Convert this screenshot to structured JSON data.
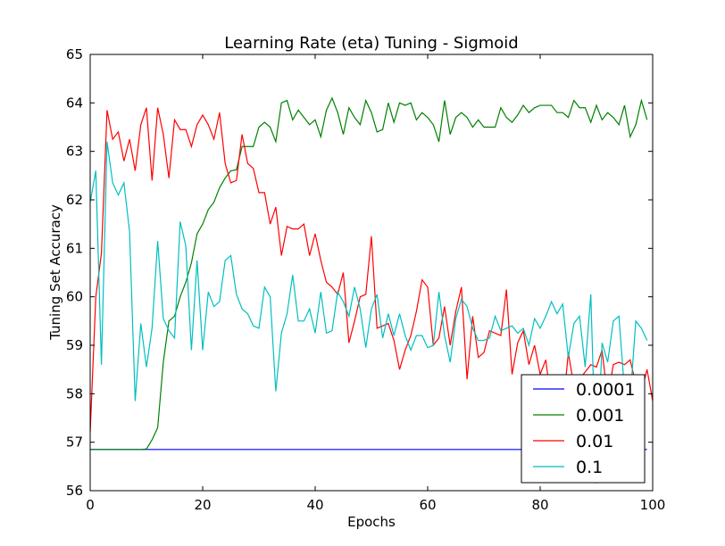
{
  "chart_data": {
    "type": "line",
    "title": "Learning Rate (eta) Tuning - Sigmoid",
    "xlabel": "Epochs",
    "ylabel": "Tuning Set Accuracy",
    "xlim": [
      0,
      100
    ],
    "ylim": [
      56,
      65
    ],
    "x_ticks": [
      "0",
      "20",
      "40",
      "60",
      "80",
      "100"
    ],
    "y_ticks": [
      "56",
      "57",
      "58",
      "59",
      "60",
      "61",
      "62",
      "63",
      "64",
      "65"
    ],
    "grid": false,
    "legend_position": "lower-right",
    "series": [
      {
        "name": "0.0001",
        "color": "#0000ff",
        "values": [
          56.85,
          56.85,
          56.85,
          56.85,
          56.85,
          56.85,
          56.85,
          56.85,
          56.85,
          56.85,
          56.85,
          56.85,
          56.85,
          56.85,
          56.85,
          56.85,
          56.85,
          56.85,
          56.85,
          56.85,
          56.85,
          56.85,
          56.85,
          56.85,
          56.85,
          56.85,
          56.85,
          56.85,
          56.85,
          56.85,
          56.85,
          56.85,
          56.85,
          56.85,
          56.85,
          56.85,
          56.85,
          56.85,
          56.85,
          56.85,
          56.85,
          56.85,
          56.85,
          56.85,
          56.85,
          56.85,
          56.85,
          56.85,
          56.85,
          56.85,
          56.85,
          56.85,
          56.85,
          56.85,
          56.85,
          56.85,
          56.85,
          56.85,
          56.85,
          56.85,
          56.85,
          56.85,
          56.85,
          56.85,
          56.85,
          56.85,
          56.85,
          56.85,
          56.85,
          56.85,
          56.85,
          56.85,
          56.85,
          56.85,
          56.85,
          56.85,
          56.85,
          56.85,
          56.85,
          56.85,
          56.85,
          56.85,
          56.85,
          56.85,
          56.85,
          56.85,
          56.85,
          56.85,
          56.85,
          56.85,
          56.85,
          56.85,
          56.85,
          56.85,
          56.85,
          56.85,
          56.85,
          56.85,
          56.85,
          56.85
        ]
      },
      {
        "name": "0.001",
        "color": "#008000",
        "values": [
          56.85,
          56.85,
          56.85,
          56.85,
          56.85,
          56.85,
          56.85,
          56.85,
          56.85,
          56.85,
          56.86,
          57.05,
          57.3,
          58.65,
          59.5,
          59.6,
          60.0,
          60.3,
          60.7,
          61.3,
          61.5,
          61.8,
          61.95,
          62.25,
          62.45,
          62.6,
          62.62,
          63.1,
          63.1,
          63.1,
          63.5,
          63.6,
          63.5,
          63.2,
          64.0,
          64.05,
          63.65,
          63.85,
          63.7,
          63.55,
          63.65,
          63.3,
          63.85,
          64.1,
          63.8,
          63.35,
          63.9,
          63.7,
          63.55,
          64.05,
          63.8,
          63.4,
          63.45,
          64.0,
          63.6,
          64.0,
          63.95,
          64.0,
          63.65,
          63.8,
          63.7,
          63.55,
          63.2,
          64.05,
          63.35,
          63.7,
          63.8,
          63.7,
          63.5,
          63.65,
          63.5,
          63.5,
          63.5,
          63.9,
          63.7,
          63.6,
          63.75,
          63.95,
          63.8,
          63.9,
          63.95,
          63.95,
          63.95,
          63.8,
          63.8,
          63.7,
          64.05,
          63.9,
          63.9,
          63.6,
          63.95,
          63.65,
          63.8,
          63.7,
          63.55,
          63.95,
          63.3,
          63.55,
          64.05,
          63.65
        ]
      },
      {
        "name": "0.01",
        "color": "#ff0000",
        "values": [
          57.2,
          60.0,
          60.9,
          63.85,
          63.25,
          63.4,
          62.8,
          63.25,
          62.6,
          63.55,
          63.9,
          62.4,
          63.9,
          63.35,
          62.45,
          63.65,
          63.45,
          63.45,
          63.1,
          63.55,
          63.75,
          63.55,
          63.25,
          63.8,
          62.75,
          62.35,
          62.4,
          63.35,
          62.75,
          62.65,
          62.15,
          62.15,
          61.5,
          61.85,
          60.85,
          61.45,
          61.4,
          61.4,
          61.5,
          60.85,
          61.3,
          60.75,
          60.3,
          60.2,
          60.05,
          60.5,
          59.05,
          59.5,
          60.0,
          60.05,
          61.25,
          59.35,
          59.4,
          59.45,
          59.1,
          58.5,
          58.9,
          59.2,
          59.7,
          60.35,
          60.2,
          59.0,
          59.15,
          59.8,
          59.0,
          59.7,
          60.2,
          58.3,
          59.6,
          58.75,
          58.85,
          59.3,
          59.25,
          59.2,
          60.15,
          58.4,
          59.05,
          59.3,
          58.6,
          59.0,
          58.4,
          58.7,
          57.75,
          57.9,
          57.6,
          58.85,
          58.15,
          58.3,
          58.45,
          58.6,
          58.55,
          58.9,
          57.9,
          58.6,
          58.65,
          58.6,
          58.7,
          58.2,
          58.05,
          58.5,
          57.85
        ]
      },
      {
        "name": "0.1",
        "color": "#00bfbf",
        "values": [
          61.95,
          62.6,
          58.6,
          63.2,
          62.35,
          62.1,
          62.35,
          61.35,
          57.85,
          59.45,
          58.55,
          59.35,
          61.15,
          59.55,
          59.3,
          59.15,
          61.55,
          61.05,
          58.9,
          60.75,
          58.9,
          60.1,
          59.8,
          59.9,
          60.75,
          60.85,
          60.05,
          59.75,
          59.65,
          59.4,
          59.35,
          60.2,
          60.0,
          58.05,
          59.25,
          59.65,
          60.45,
          59.5,
          59.5,
          59.75,
          59.25,
          60.1,
          59.25,
          59.3,
          60.1,
          59.9,
          59.6,
          60.2,
          59.75,
          58.95,
          59.75,
          60.05,
          59.15,
          59.65,
          59.2,
          59.65,
          59.2,
          58.9,
          59.2,
          59.2,
          58.95,
          59.0,
          60.1,
          59.2,
          58.65,
          59.55,
          59.95,
          59.8,
          59.35,
          59.1,
          59.1,
          59.15,
          59.6,
          59.3,
          59.35,
          59.4,
          59.25,
          59.35,
          59.0,
          59.55,
          59.35,
          59.6,
          59.9,
          59.65,
          59.85,
          58.75,
          59.45,
          59.6,
          58.55,
          60.05,
          56.15,
          59.05,
          58.65,
          59.5,
          59.6,
          58.05,
          57.9,
          59.5,
          59.35,
          59.1
        ]
      }
    ]
  }
}
